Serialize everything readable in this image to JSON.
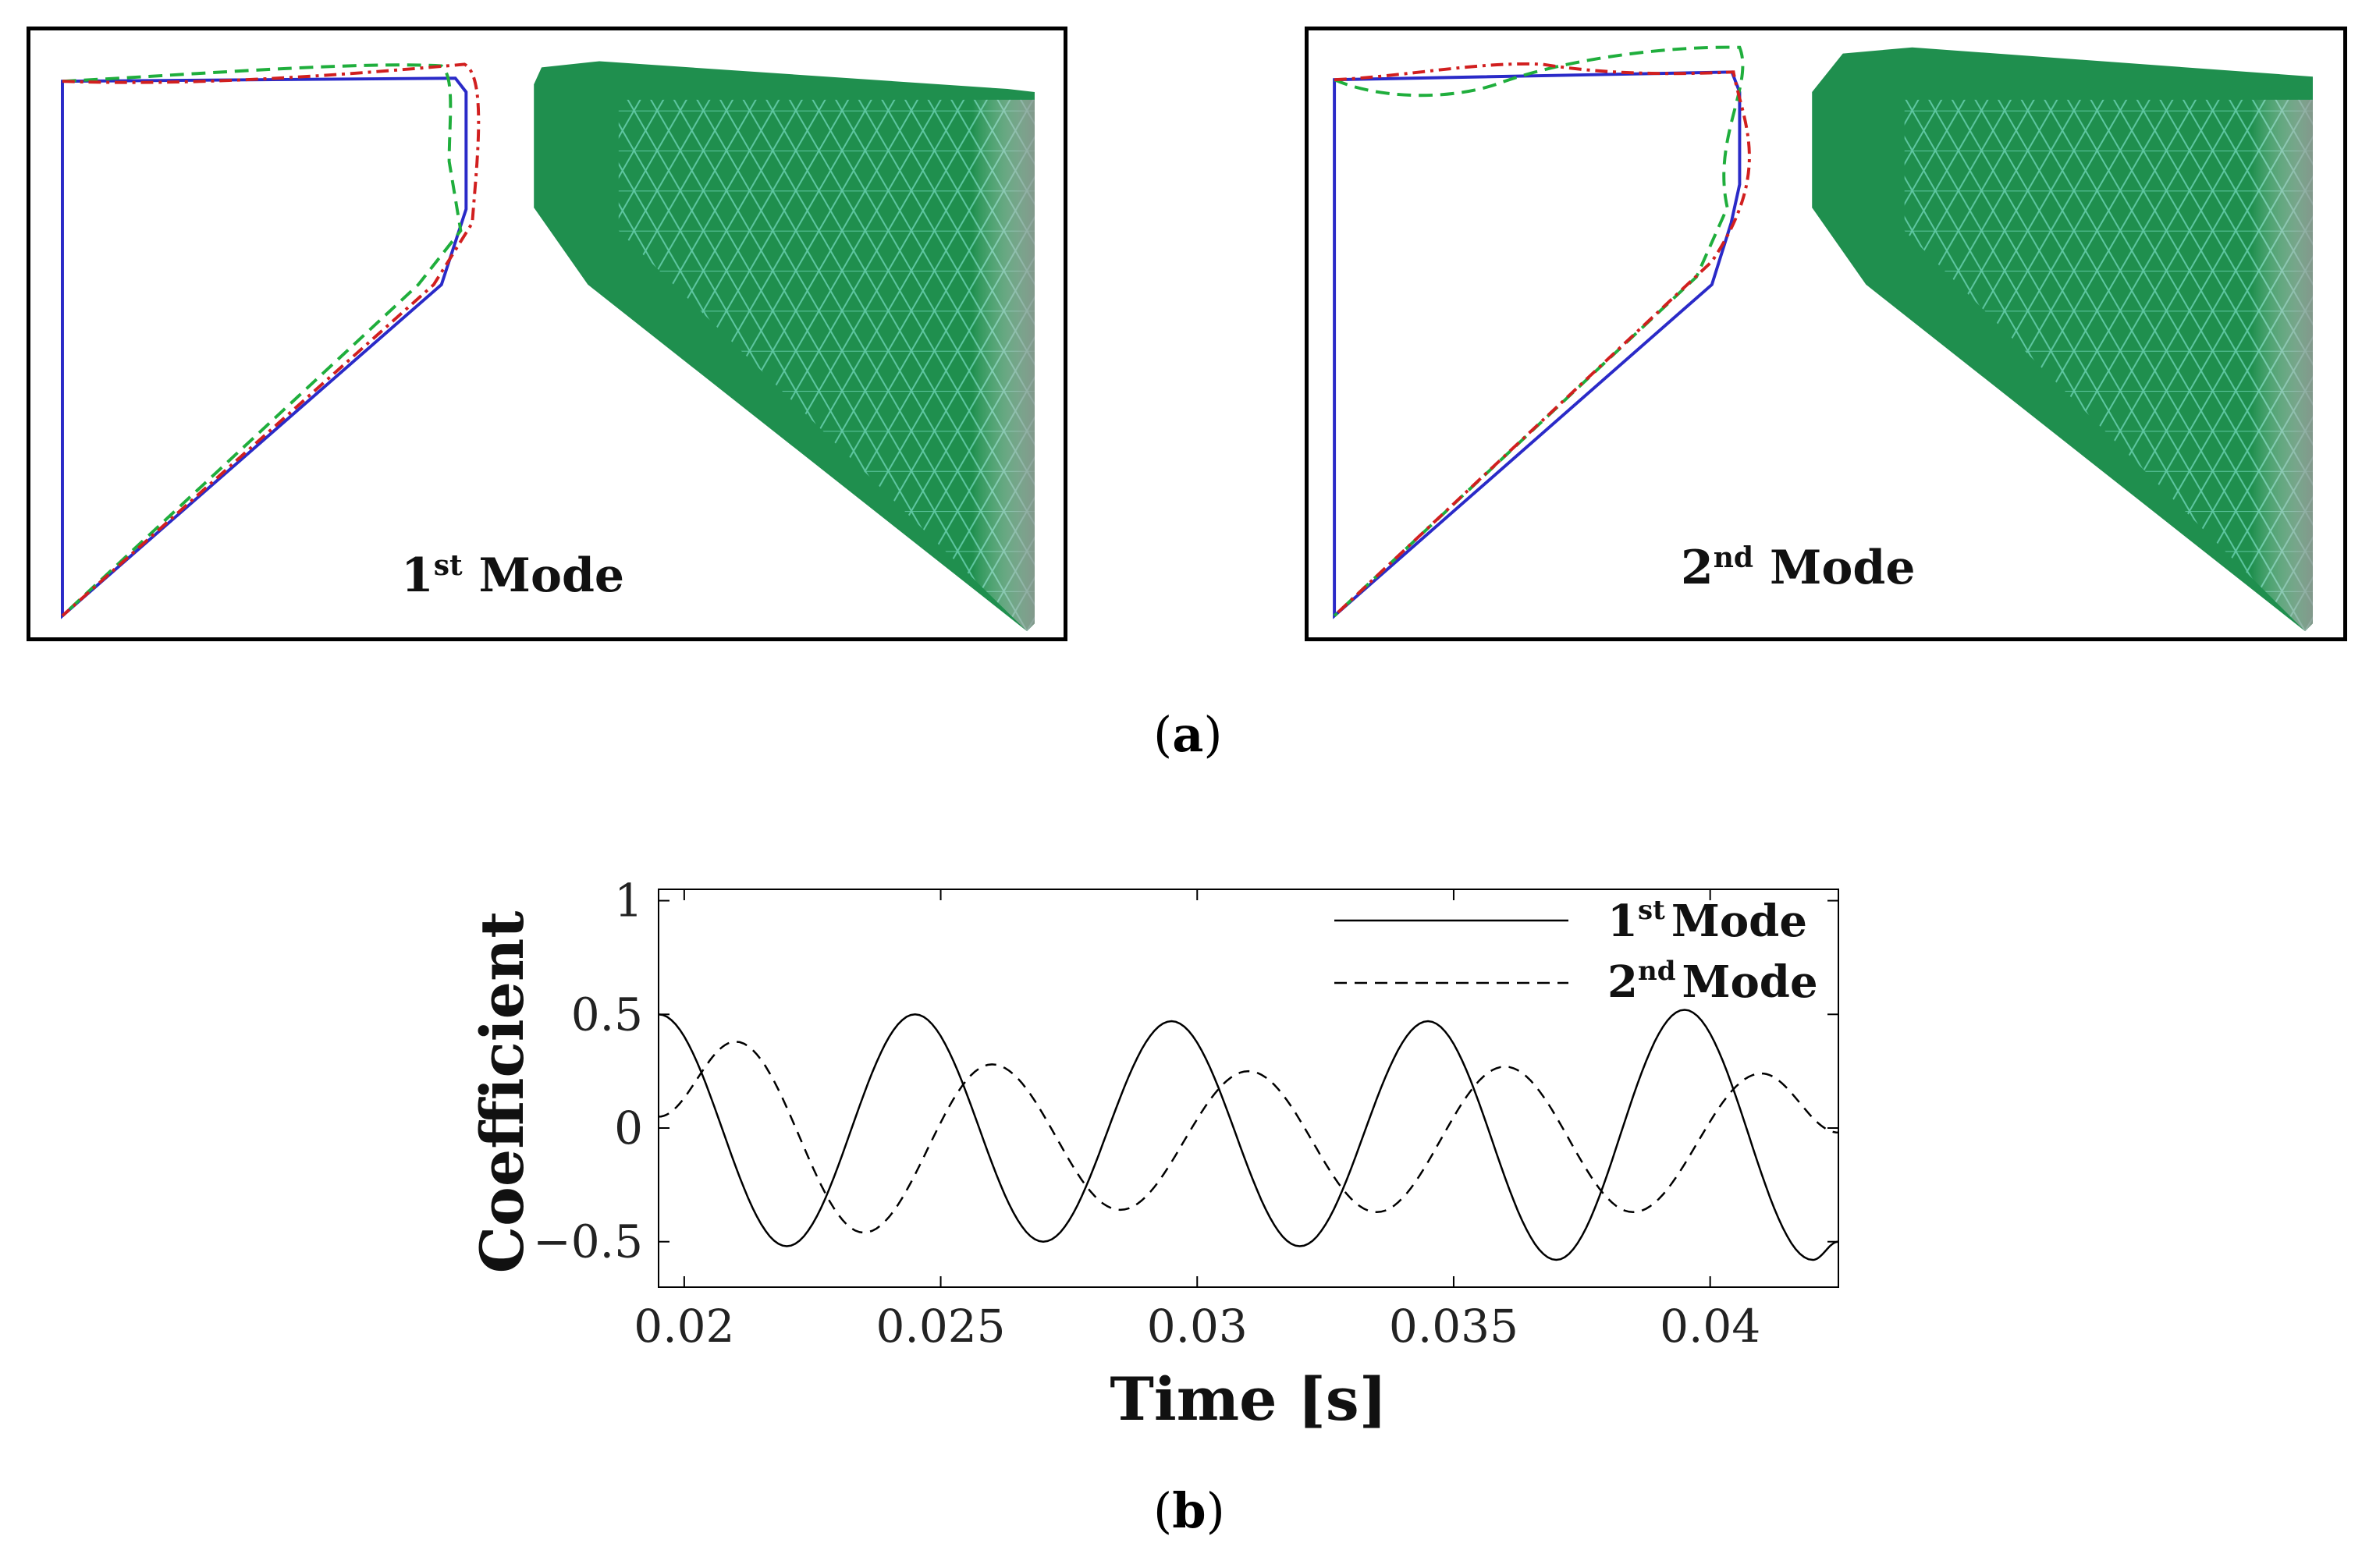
{
  "panel_a": {
    "left_label_num": "1",
    "left_label_sup": "st",
    "left_label_word": "Mode",
    "right_label_num": "2",
    "right_label_sup": "nd",
    "right_label_word": "Mode",
    "colors": {
      "line_solid": "#2a2ac8",
      "line_dashed": "#1fae3c",
      "line_dashdot": "#d11f1f",
      "mesh_fill": "#1f8f4e",
      "mesh_line": "#5fc7a2"
    }
  },
  "label_a": {
    "open": "(",
    "letter": "a",
    "close": ")"
  },
  "label_b": {
    "open": "(",
    "letter": "b",
    "close": ")"
  },
  "chart_data": {
    "type": "line",
    "xlabel": "Time [s]",
    "ylabel": "Coefficient",
    "xlim": [
      0.0195,
      0.0425
    ],
    "ylim": [
      -0.7,
      1.05
    ],
    "xticks": [
      0.02,
      0.025,
      0.03,
      0.035,
      0.04
    ],
    "xtick_labels": [
      "0.02",
      "0.025",
      "0.03",
      "0.035",
      "0.04"
    ],
    "yticks": [
      1,
      0.5,
      0,
      -0.5
    ],
    "ytick_labels": [
      "1",
      "0.5",
      "0",
      "−0.5"
    ],
    "legend_position": "top-right",
    "series": [
      {
        "name": "1st Mode",
        "name_num": "1",
        "name_sup": "st",
        "name_word": "Mode",
        "style": "solid",
        "x": [
          0.0195,
          0.022,
          0.0245,
          0.027,
          0.0295,
          0.032,
          0.0345,
          0.037,
          0.0395,
          0.042,
          0.0425
        ],
        "y": [
          0.5,
          -0.52,
          0.5,
          -0.5,
          0.47,
          -0.52,
          0.47,
          -0.58,
          0.52,
          -0.58,
          -0.5
        ]
      },
      {
        "name": "2nd Mode",
        "name_num": "2",
        "name_sup": "nd",
        "name_word": "Mode",
        "style": "dashed",
        "x": [
          0.0195,
          0.021,
          0.0235,
          0.026,
          0.0285,
          0.031,
          0.0335,
          0.036,
          0.0385,
          0.041,
          0.0425
        ],
        "y": [
          0.05,
          0.38,
          -0.46,
          0.28,
          -0.36,
          0.25,
          -0.37,
          0.27,
          -0.37,
          0.24,
          -0.02
        ]
      }
    ]
  }
}
